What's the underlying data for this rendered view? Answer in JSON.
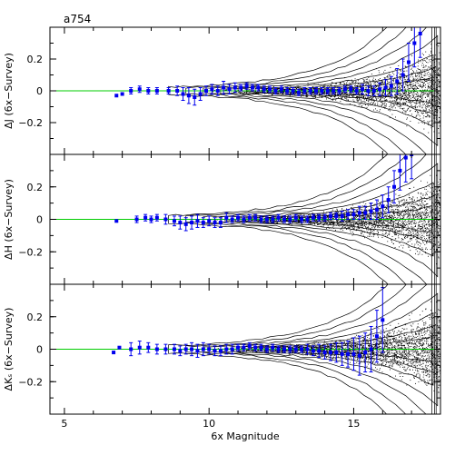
{
  "chart_data": {
    "type": "scatter",
    "title": "a754",
    "xlabel": "6x Magnitude",
    "xlim": [
      4.5,
      18
    ],
    "xticks": [
      5,
      10,
      15
    ],
    "ylim": [
      -0.4,
      0.4
    ],
    "yticks": [
      -0.2,
      0,
      0.2
    ],
    "ytick_labels": [
      "−0.2",
      "0",
      "0.2"
    ],
    "zero_line_color": "#00cc00",
    "point_color": "#0000ee",
    "density_color": "#000000",
    "panels": [
      {
        "ylabel": "ΔJ (6x−Survey)",
        "series": [
          {
            "x": [
              6.8,
              7.0,
              7.3,
              7.6,
              7.9,
              8.2,
              8.6,
              8.9,
              9.1,
              9.3,
              9.5,
              9.7,
              9.9,
              10.1,
              10.3,
              10.5,
              10.7,
              10.9,
              11.1,
              11.3,
              11.5,
              11.7,
              11.9,
              12.1,
              12.3,
              12.5,
              12.7,
              12.9,
              13.1,
              13.3,
              13.5,
              13.7,
              13.9,
              14.1,
              14.3,
              14.5,
              14.7,
              14.9,
              15.1,
              15.3,
              15.5,
              15.7,
              15.9,
              16.1,
              16.3,
              16.5,
              16.7,
              16.9,
              17.1,
              17.3
            ],
            "y": [
              -0.03,
              -0.02,
              0.0,
              0.01,
              0.0,
              0.0,
              0.0,
              0.0,
              -0.02,
              -0.03,
              -0.04,
              -0.02,
              0.0,
              0.01,
              0.0,
              0.02,
              0.01,
              0.02,
              0.02,
              0.03,
              0.02,
              0.02,
              0.01,
              0.01,
              0.0,
              0.01,
              0.0,
              0.0,
              -0.01,
              0.0,
              0.0,
              0.0,
              0.0,
              0.0,
              0.0,
              0.0,
              0.01,
              0.01,
              0.0,
              0.01,
              0.0,
              0.0,
              0.01,
              0.02,
              0.03,
              0.06,
              0.1,
              0.18,
              0.3,
              0.36
            ],
            "err": [
              0.0,
              0.0,
              0.02,
              0.02,
              0.02,
              0.02,
              0.02,
              0.03,
              0.04,
              0.05,
              0.05,
              0.04,
              0.03,
              0.03,
              0.03,
              0.04,
              0.03,
              0.03,
              0.02,
              0.02,
              0.02,
              0.02,
              0.02,
              0.02,
              0.02,
              0.02,
              0.02,
              0.02,
              0.02,
              0.02,
              0.02,
              0.02,
              0.02,
              0.02,
              0.02,
              0.02,
              0.02,
              0.02,
              0.02,
              0.03,
              0.03,
              0.03,
              0.04,
              0.05,
              0.06,
              0.08,
              0.1,
              0.12,
              0.15,
              0.15
            ]
          }
        ]
      },
      {
        "ylabel": "ΔH (6x−Survey)",
        "series": [
          {
            "x": [
              6.8,
              7.5,
              7.8,
              8.0,
              8.2,
              8.5,
              8.8,
              9.0,
              9.2,
              9.4,
              9.6,
              9.8,
              10.0,
              10.2,
              10.4,
              10.6,
              10.8,
              11.0,
              11.2,
              11.4,
              11.6,
              11.8,
              12.0,
              12.2,
              12.4,
              12.6,
              12.8,
              13.0,
              13.2,
              13.4,
              13.6,
              13.8,
              14.0,
              14.2,
              14.4,
              14.6,
              14.8,
              15.0,
              15.2,
              15.4,
              15.6,
              15.8,
              16.0,
              16.2,
              16.4,
              16.6,
              16.8,
              17.0
            ],
            "y": [
              -0.01,
              0.0,
              0.01,
              0.0,
              0.01,
              0.0,
              -0.01,
              -0.02,
              -0.03,
              -0.02,
              -0.01,
              -0.02,
              -0.01,
              -0.02,
              -0.02,
              0.01,
              0.0,
              0.01,
              0.0,
              0.01,
              0.01,
              0.0,
              0.0,
              0.0,
              0.01,
              0.0,
              0.0,
              0.01,
              0.0,
              0.0,
              0.01,
              0.01,
              0.01,
              0.02,
              0.02,
              0.02,
              0.03,
              0.03,
              0.04,
              0.04,
              0.05,
              0.06,
              0.08,
              0.12,
              0.2,
              0.3,
              0.38,
              0.4
            ],
            "err": [
              0.0,
              0.02,
              0.02,
              0.02,
              0.02,
              0.03,
              0.03,
              0.04,
              0.04,
              0.04,
              0.04,
              0.03,
              0.03,
              0.03,
              0.03,
              0.03,
              0.02,
              0.02,
              0.02,
              0.02,
              0.02,
              0.02,
              0.02,
              0.02,
              0.02,
              0.02,
              0.02,
              0.02,
              0.02,
              0.02,
              0.02,
              0.02,
              0.02,
              0.02,
              0.02,
              0.03,
              0.03,
              0.03,
              0.04,
              0.04,
              0.05,
              0.06,
              0.07,
              0.08,
              0.1,
              0.12,
              0.15,
              0.15
            ]
          }
        ]
      },
      {
        "ylabel": "ΔKₛ (6x−Survey)",
        "series": [
          {
            "x": [
              6.7,
              6.9,
              7.3,
              7.6,
              7.9,
              8.2,
              8.5,
              8.8,
              9.0,
              9.2,
              9.4,
              9.6,
              9.8,
              10.0,
              10.2,
              10.4,
              10.6,
              10.8,
              11.0,
              11.2,
              11.4,
              11.6,
              11.8,
              12.0,
              12.2,
              12.4,
              12.6,
              12.8,
              13.0,
              13.2,
              13.4,
              13.6,
              13.8,
              14.0,
              14.2,
              14.4,
              14.6,
              14.8,
              15.0,
              15.2,
              15.4,
              15.6,
              15.8,
              16.0
            ],
            "y": [
              -0.02,
              0.01,
              0.0,
              0.01,
              0.01,
              0.0,
              0.0,
              0.0,
              -0.01,
              0.0,
              0.0,
              -0.01,
              0.0,
              0.0,
              -0.01,
              -0.01,
              0.0,
              0.0,
              0.01,
              0.01,
              0.02,
              0.01,
              0.01,
              0.0,
              0.01,
              0.0,
              0.0,
              0.0,
              0.0,
              0.0,
              0.0,
              -0.01,
              -0.01,
              -0.02,
              -0.02,
              -0.02,
              -0.03,
              -0.03,
              -0.03,
              -0.04,
              -0.02,
              0.0,
              0.08,
              0.18
            ],
            "err": [
              0.0,
              0.0,
              0.04,
              0.04,
              0.03,
              0.03,
              0.03,
              0.03,
              0.03,
              0.03,
              0.04,
              0.04,
              0.04,
              0.03,
              0.03,
              0.03,
              0.03,
              0.03,
              0.02,
              0.02,
              0.02,
              0.02,
              0.02,
              0.02,
              0.02,
              0.02,
              0.02,
              0.02,
              0.02,
              0.02,
              0.03,
              0.03,
              0.04,
              0.04,
              0.05,
              0.06,
              0.07,
              0.08,
              0.1,
              0.12,
              0.12,
              0.14,
              0.16,
              0.2
            ]
          }
        ]
      }
    ]
  }
}
